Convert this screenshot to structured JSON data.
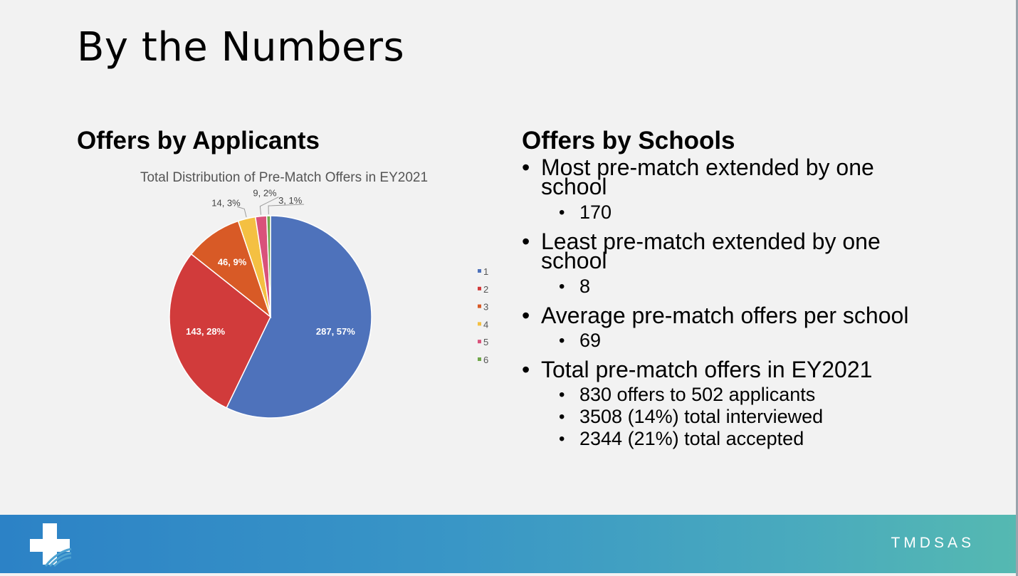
{
  "slide": {
    "title": "By the Numbers",
    "left_heading": "Offers by Applicants",
    "right_heading": "Offers by Schools",
    "brand": "TMDSAS"
  },
  "bullets": {
    "most_label": "Most pre-match extended by one school",
    "most_value": "170",
    "least_label": "Least pre-match extended by one school",
    "least_value": "8",
    "avg_label": "Average pre-match offers per school",
    "avg_value": "69",
    "total_label": "Total pre-match offers in EY2021",
    "total_sub1": "830 offers to 502 applicants",
    "total_sub2": "3508 (14%) total interviewed",
    "total_sub3": "2344 (21%) total accepted"
  },
  "chart_data": {
    "type": "pie",
    "title": "Total Distribution of Pre-Match Offers in EY2021",
    "legend_position": "right",
    "categories": [
      "1",
      "2",
      "3",
      "4",
      "5",
      "6"
    ],
    "values": [
      287,
      143,
      46,
      14,
      9,
      3
    ],
    "percents": [
      "57%",
      "28%",
      "9%",
      "3%",
      "2%",
      "1%"
    ],
    "data_labels": [
      "287, 57%",
      "143, 28%",
      "46, 9%",
      "14, 3%",
      "9, 2%",
      "3, 1%"
    ],
    "colors": [
      "#4e72bb",
      "#d13b3b",
      "#d85a26",
      "#f4c042",
      "#d9527b",
      "#70a84a"
    ]
  }
}
